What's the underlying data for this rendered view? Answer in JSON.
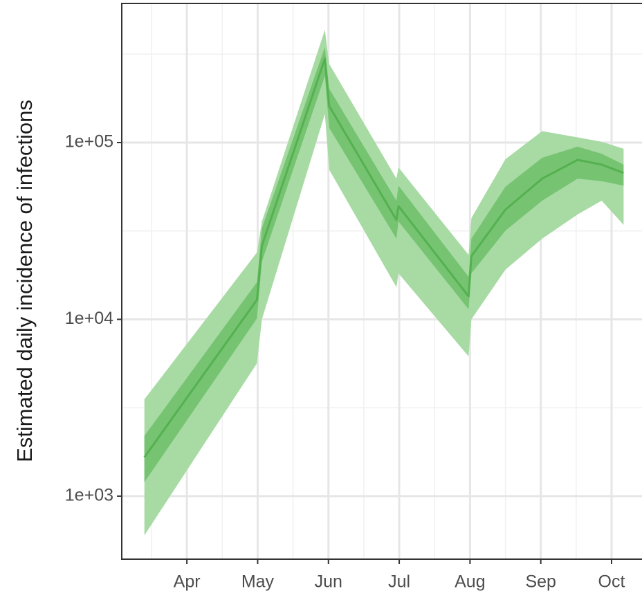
{
  "chart_data": {
    "type": "band-line",
    "ylabel": "Estimated daily incidence of infections",
    "log_y": true,
    "grid": true,
    "x": [
      3.4,
      4.99,
      5.06,
      5.95,
      6.01,
      6.96,
      6.99,
      7.98,
      8.02,
      8.5,
      9.02,
      9.52,
      9.86,
      10.17
    ],
    "values": [
      1660,
      12900,
      26100,
      298000,
      161000,
      36500,
      43700,
      13500,
      22800,
      41700,
      62500,
      79800,
      75000,
      67300
    ],
    "color": "#55b150",
    "bands": [
      {
        "color": "#a8dba4",
        "lower": [
          600,
          5640,
          10000,
          145000,
          70300,
          15200,
          18200,
          6170,
          10000,
          19100,
          28600,
          39200,
          46900,
          34200
        ],
        "upper": [
          3530,
          23900,
          35800,
          434000,
          279000,
          62500,
          72300,
          23200,
          37400,
          80500,
          116000,
          107000,
          101000,
          92300
        ]
      },
      {
        "color": "#76c372",
        "lower": [
          1200,
          10100,
          21200,
          238000,
          121000,
          28600,
          35800,
          11400,
          18200,
          31700,
          46900,
          62500,
          60400,
          57100
        ],
        "upper": [
          2190,
          16200,
          32700,
          347000,
          202000,
          46900,
          57100,
          17400,
          28600,
          56200,
          82000,
          94800,
          86500,
          75000
        ]
      }
    ],
    "xlim": [
      3.08,
      10.43
    ],
    "xticks": [
      {
        "value": 4,
        "label": "Apr"
      },
      {
        "value": 5,
        "label": "May"
      },
      {
        "value": 6,
        "label": "Jun"
      },
      {
        "value": 7,
        "label": "Jul"
      },
      {
        "value": 8,
        "label": "Aug"
      },
      {
        "value": 9,
        "label": "Sep"
      },
      {
        "value": 10,
        "label": "Oct"
      }
    ],
    "ylim": [
      440,
      612000
    ],
    "yticks": [
      {
        "value": 1000,
        "label": "1e+03"
      },
      {
        "value": 10000,
        "label": "1e+04"
      },
      {
        "value": 100000,
        "label": "1e+05"
      }
    ]
  }
}
